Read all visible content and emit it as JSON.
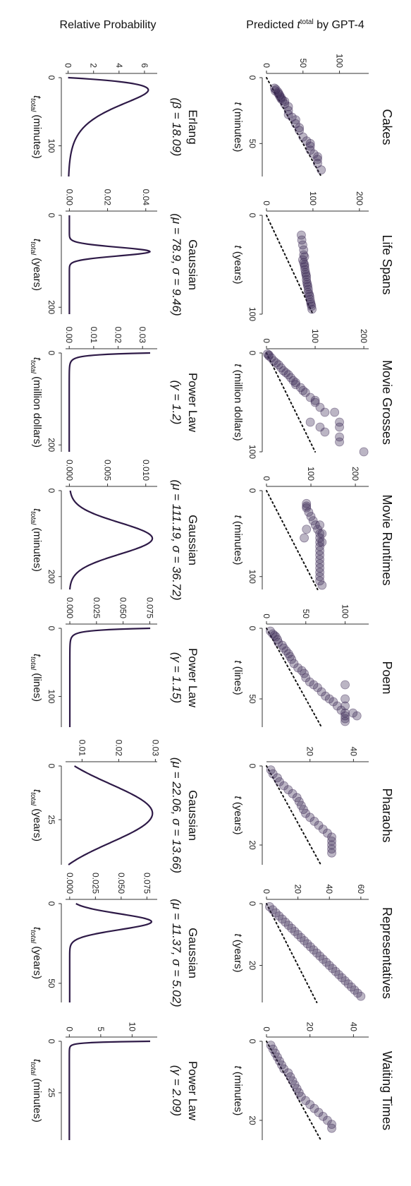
{
  "figure": {
    "row_labels": {
      "predicted": "Predicted t_total by GPT-4",
      "probability": "Relative Probability"
    },
    "style": {
      "point_color": "#3d2a56",
      "curve_color": "#2e1a47",
      "diagonal": "dotted"
    }
  },
  "chart_data": [
    {
      "type": "scatter",
      "title": "Cakes",
      "xlabel": "t (minutes)",
      "ylabel": "Predicted t_total by GPT-4",
      "xlim": [
        0,
        75
      ],
      "ylim": [
        0,
        140
      ],
      "xticks": [
        0,
        50
      ],
      "yticks": [
        0,
        50,
        100
      ],
      "points": [
        [
          8,
          11
        ],
        [
          9,
          13
        ],
        [
          10,
          12
        ],
        [
          11,
          16
        ],
        [
          12,
          16
        ],
        [
          13,
          18
        ],
        [
          14,
          18
        ],
        [
          15,
          20
        ],
        [
          16,
          20
        ],
        [
          17,
          22
        ],
        [
          18,
          25
        ],
        [
          20,
          25
        ],
        [
          22,
          30
        ],
        [
          25,
          30
        ],
        [
          28,
          30
        ],
        [
          30,
          35
        ],
        [
          32,
          40
        ],
        [
          35,
          40
        ],
        [
          38,
          45
        ],
        [
          40,
          45
        ],
        [
          45,
          50
        ],
        [
          48,
          55
        ],
        [
          50,
          60
        ],
        [
          52,
          60
        ],
        [
          55,
          60
        ],
        [
          58,
          65
        ],
        [
          60,
          70
        ],
        [
          62,
          70
        ],
        [
          65,
          70
        ],
        [
          70,
          75
        ]
      ]
    },
    {
      "type": "scatter",
      "title": "Life Spans",
      "xlabel": "t (years)",
      "ylabel": "Predicted t_total by GPT-4",
      "xlim": [
        0,
        100
      ],
      "ylim": [
        0,
        220
      ],
      "xticks": [
        0,
        100
      ],
      "yticks": [
        0,
        100,
        200
      ],
      "points": [
        [
          20,
          75
        ],
        [
          25,
          76
        ],
        [
          30,
          78
        ],
        [
          35,
          80
        ],
        [
          40,
          80
        ],
        [
          42,
          82
        ],
        [
          45,
          78
        ],
        [
          48,
          80
        ],
        [
          50,
          82
        ],
        [
          52,
          82
        ],
        [
          55,
          83
        ],
        [
          58,
          84
        ],
        [
          60,
          85
        ],
        [
          62,
          86
        ],
        [
          65,
          86
        ],
        [
          68,
          87
        ],
        [
          70,
          88
        ],
        [
          72,
          89
        ],
        [
          75,
          90
        ],
        [
          78,
          90
        ],
        [
          80,
          92
        ],
        [
          82,
          93
        ],
        [
          85,
          94
        ],
        [
          88,
          95
        ],
        [
          90,
          96
        ],
        [
          92,
          97
        ],
        [
          95,
          98
        ]
      ]
    },
    {
      "type": "scatter",
      "title": "Movie Grosses",
      "xlabel": "t (million dollars)",
      "ylabel": "Predicted t_total by GPT-4",
      "xlim": [
        0,
        100
      ],
      "ylim": [
        0,
        210
      ],
      "xticks": [
        0,
        100
      ],
      "yticks": [
        0,
        100,
        200
      ],
      "points": [
        [
          1,
          2
        ],
        [
          2,
          5
        ],
        [
          3,
          5
        ],
        [
          5,
          10
        ],
        [
          8,
          15
        ],
        [
          10,
          20
        ],
        [
          12,
          25
        ],
        [
          15,
          30
        ],
        [
          18,
          35
        ],
        [
          20,
          40
        ],
        [
          22,
          45
        ],
        [
          25,
          50
        ],
        [
          28,
          55
        ],
        [
          30,
          60
        ],
        [
          32,
          60
        ],
        [
          35,
          70
        ],
        [
          38,
          75
        ],
        [
          40,
          80
        ],
        [
          45,
          90
        ],
        [
          48,
          100
        ],
        [
          50,
          100
        ],
        [
          55,
          110
        ],
        [
          60,
          120
        ],
        [
          60,
          140
        ],
        [
          70,
          150
        ],
        [
          75,
          150
        ],
        [
          75,
          110
        ],
        [
          80,
          120
        ],
        [
          85,
          150
        ],
        [
          90,
          150
        ],
        [
          70,
          90
        ],
        [
          100,
          200
        ]
      ]
    },
    {
      "type": "scatter",
      "title": "Movie Runtimes",
      "xlabel": "t (minutes)",
      "ylabel": "Predicted t_total by GPT-4",
      "xlim": [
        0,
        115
      ],
      "ylim": [
        0,
        230
      ],
      "xticks": [
        0,
        100
      ],
      "yticks": [
        0,
        100,
        200
      ],
      "points": [
        [
          15,
          90
        ],
        [
          18,
          90
        ],
        [
          20,
          90
        ],
        [
          25,
          95
        ],
        [
          30,
          100
        ],
        [
          35,
          105
        ],
        [
          40,
          110
        ],
        [
          45,
          115
        ],
        [
          50,
          120
        ],
        [
          55,
          120
        ],
        [
          60,
          120
        ],
        [
          65,
          120
        ],
        [
          70,
          120
        ],
        [
          75,
          120
        ],
        [
          80,
          120
        ],
        [
          85,
          120
        ],
        [
          90,
          120
        ],
        [
          95,
          120
        ],
        [
          100,
          120
        ],
        [
          105,
          120
        ],
        [
          110,
          125
        ],
        [
          40,
          120
        ],
        [
          50,
          125
        ],
        [
          60,
          125
        ],
        [
          45,
          90
        ],
        [
          55,
          85
        ]
      ]
    },
    {
      "type": "scatter",
      "title": "Poem",
      "xlabel": "t (lines)",
      "ylabel": "Predicted t_total by GPT-4",
      "xlim": [
        0,
        70
      ],
      "ylim": [
        0,
        130
      ],
      "xticks": [
        0,
        50
      ],
      "yticks": [
        0,
        50,
        100
      ],
      "points": [
        [
          2,
          5
        ],
        [
          4,
          8
        ],
        [
          5,
          10
        ],
        [
          6,
          12
        ],
        [
          8,
          14
        ],
        [
          10,
          15
        ],
        [
          12,
          20
        ],
        [
          14,
          22
        ],
        [
          16,
          25
        ],
        [
          18,
          28
        ],
        [
          20,
          30
        ],
        [
          22,
          32
        ],
        [
          25,
          35
        ],
        [
          28,
          40
        ],
        [
          30,
          45
        ],
        [
          32,
          48
        ],
        [
          35,
          50
        ],
        [
          38,
          55
        ],
        [
          40,
          60
        ],
        [
          42,
          65
        ],
        [
          45,
          70
        ],
        [
          48,
          75
        ],
        [
          50,
          80
        ],
        [
          52,
          85
        ],
        [
          55,
          90
        ],
        [
          58,
          95
        ],
        [
          60,
          100
        ],
        [
          62,
          100
        ],
        [
          64,
          100
        ],
        [
          66,
          100
        ],
        [
          40,
          100
        ],
        [
          50,
          100
        ],
        [
          55,
          100
        ],
        [
          60,
          110
        ],
        [
          62,
          115
        ]
      ]
    },
    {
      "type": "scatter",
      "title": "Pharaohs",
      "xlabel": "t (years)",
      "ylabel": "Predicted t_total by GPT-4",
      "xlim": [
        0,
        25
      ],
      "ylim": [
        0,
        47
      ],
      "xticks": [
        0,
        20
      ],
      "yticks": [
        20,
        40
      ],
      "points": [
        [
          1,
          2
        ],
        [
          2,
          3
        ],
        [
          3,
          5
        ],
        [
          4,
          6
        ],
        [
          5,
          8
        ],
        [
          6,
          10
        ],
        [
          7,
          12
        ],
        [
          8,
          14
        ],
        [
          9,
          15
        ],
        [
          10,
          16
        ],
        [
          11,
          17
        ],
        [
          12,
          18
        ],
        [
          13,
          20
        ],
        [
          14,
          22
        ],
        [
          15,
          24
        ],
        [
          16,
          26
        ],
        [
          17,
          28
        ],
        [
          18,
          30
        ],
        [
          19,
          30
        ],
        [
          20,
          30
        ],
        [
          21,
          30
        ],
        [
          22,
          30
        ]
      ]
    },
    {
      "type": "scatter",
      "title": "Representatives",
      "xlabel": "t (years)",
      "ylabel": "Predicted t_total by GPT-4",
      "xlim": [
        0,
        32
      ],
      "ylim": [
        0,
        65
      ],
      "xticks": [
        0,
        20
      ],
      "yticks": [
        0,
        20,
        40,
        60
      ],
      "points": [
        [
          1,
          2
        ],
        [
          2,
          4
        ],
        [
          3,
          6
        ],
        [
          4,
          8
        ],
        [
          5,
          10
        ],
        [
          6,
          12
        ],
        [
          7,
          14
        ],
        [
          8,
          16
        ],
        [
          9,
          18
        ],
        [
          10,
          20
        ],
        [
          11,
          22
        ],
        [
          12,
          24
        ],
        [
          13,
          26
        ],
        [
          14,
          28
        ],
        [
          15,
          30
        ],
        [
          16,
          32
        ],
        [
          17,
          34
        ],
        [
          18,
          36
        ],
        [
          19,
          38
        ],
        [
          20,
          40
        ],
        [
          21,
          42
        ],
        [
          22,
          44
        ],
        [
          23,
          46
        ],
        [
          24,
          48
        ],
        [
          25,
          50
        ],
        [
          26,
          52
        ],
        [
          27,
          54
        ],
        [
          28,
          56
        ],
        [
          29,
          58
        ],
        [
          30,
          60
        ]
      ]
    },
    {
      "type": "scatter",
      "title": "Waiting Times",
      "xlabel": "t (minutes)",
      "ylabel": "Predicted t_total by GPT-4",
      "xlim": [
        0,
        25
      ],
      "ylim": [
        0,
        47
      ],
      "xticks": [
        0,
        20
      ],
      "yticks": [
        0,
        20,
        40
      ],
      "points": [
        [
          1,
          2
        ],
        [
          2,
          3
        ],
        [
          3,
          4
        ],
        [
          4,
          5
        ],
        [
          5,
          6
        ],
        [
          6,
          7
        ],
        [
          7,
          8
        ],
        [
          8,
          10
        ],
        [
          9,
          11
        ],
        [
          10,
          12
        ],
        [
          11,
          13
        ],
        [
          12,
          14
        ],
        [
          13,
          15
        ],
        [
          14,
          16
        ],
        [
          15,
          18
        ],
        [
          16,
          20
        ],
        [
          17,
          22
        ],
        [
          18,
          24
        ],
        [
          19,
          26
        ],
        [
          20,
          28
        ],
        [
          21,
          30
        ],
        [
          22,
          30
        ]
      ]
    },
    {
      "type": "line",
      "title": "Erlang",
      "params": "(β = 18.09)",
      "distribution": "erlang",
      "beta": 18.09,
      "k": 2,
      "xlabel": "t_total (minutes)",
      "ylabel": "Relative Probability",
      "xlim": [
        0,
        145
      ],
      "ylim": [
        -0.2,
        7
      ],
      "xticks": [
        0,
        100
      ],
      "yticks": [
        0,
        2,
        4,
        6
      ]
    },
    {
      "type": "line",
      "title": "Gaussian",
      "params": "(μ = 78.9, σ = 9.46)",
      "distribution": "gaussian",
      "mu": 78.9,
      "sigma": 9.46,
      "xlabel": "t_total (years)",
      "ylabel": "Relative Probability",
      "xlim": [
        0,
        215
      ],
      "ylim": [
        -0.002,
        0.046
      ],
      "xticks": [
        0,
        200
      ],
      "yticks": [
        0.0,
        0.02,
        0.04
      ]
    },
    {
      "type": "line",
      "title": "Power Law",
      "params": "(γ = 1.2)",
      "distribution": "powerlaw",
      "gamma": 1.2,
      "xlabel": "t_total (million dollars)",
      "ylabel": "Relative Probability",
      "xlim": [
        0,
        215
      ],
      "ylim": [
        -0.0015,
        0.036
      ],
      "xticks": [
        0,
        200
      ],
      "yticks": [
        0.0,
        0.01,
        0.02,
        0.03
      ]
    },
    {
      "type": "line",
      "title": "Gaussian",
      "params": "(μ = 111.19, σ = 36.72)",
      "distribution": "gaussian",
      "mu": 111.19,
      "sigma": 36.72,
      "xlabel": "t_total (minutes)",
      "ylabel": "Relative Probability",
      "xlim": [
        0,
        230
      ],
      "ylim": [
        -0.0005,
        0.0115
      ],
      "xticks": [
        0,
        200
      ],
      "yticks": [
        0.0,
        0.005,
        0.01
      ]
    },
    {
      "type": "line",
      "title": "Power Law",
      "params": "(γ = 1.15)",
      "distribution": "powerlaw",
      "gamma": 1.15,
      "xlabel": "t_total (lines)",
      "ylabel": "Relative Probability",
      "xlim": [
        0,
        145
      ],
      "ylim": [
        -0.004,
        0.082
      ],
      "xticks": [
        0,
        100
      ],
      "yticks": [
        0.0,
        0.025,
        0.05,
        0.075
      ]
    },
    {
      "type": "line",
      "title": "Gaussian",
      "params": "(μ = 22.06, σ = 13.66)",
      "distribution": "gaussian",
      "mu": 22.06,
      "sigma": 13.66,
      "xlabel": "t_total (years)",
      "ylabel": "Relative Probability",
      "xlim": [
        0,
        46
      ],
      "ylim": [
        0.0055,
        0.0305
      ],
      "xticks": [
        0,
        25
      ],
      "yticks": [
        0.01,
        0.02,
        0.03
      ]
    },
    {
      "type": "line",
      "title": "Gaussian",
      "params": "(μ = 11.37, σ = 5.02)",
      "distribution": "gaussian",
      "mu": 11.37,
      "sigma": 5.02,
      "xlabel": "t_total (years)",
      "ylabel": "Relative Probability",
      "xlim": [
        0,
        62
      ],
      "ylim": [
        -0.004,
        0.085
      ],
      "xticks": [
        0,
        50
      ],
      "yticks": [
        0.0,
        0.025,
        0.05,
        0.075
      ]
    },
    {
      "type": "line",
      "title": "Power Law",
      "params": "(γ = 2.09)",
      "distribution": "powerlaw",
      "gamma": 2.09,
      "xlabel": "t_total (minutes)",
      "ylabel": "Relative Probability",
      "xlim": [
        0,
        48
      ],
      "ylim": [
        -0.6,
        14
      ],
      "xticks": [
        0,
        25
      ],
      "yticks": [
        0,
        5,
        10
      ]
    }
  ]
}
